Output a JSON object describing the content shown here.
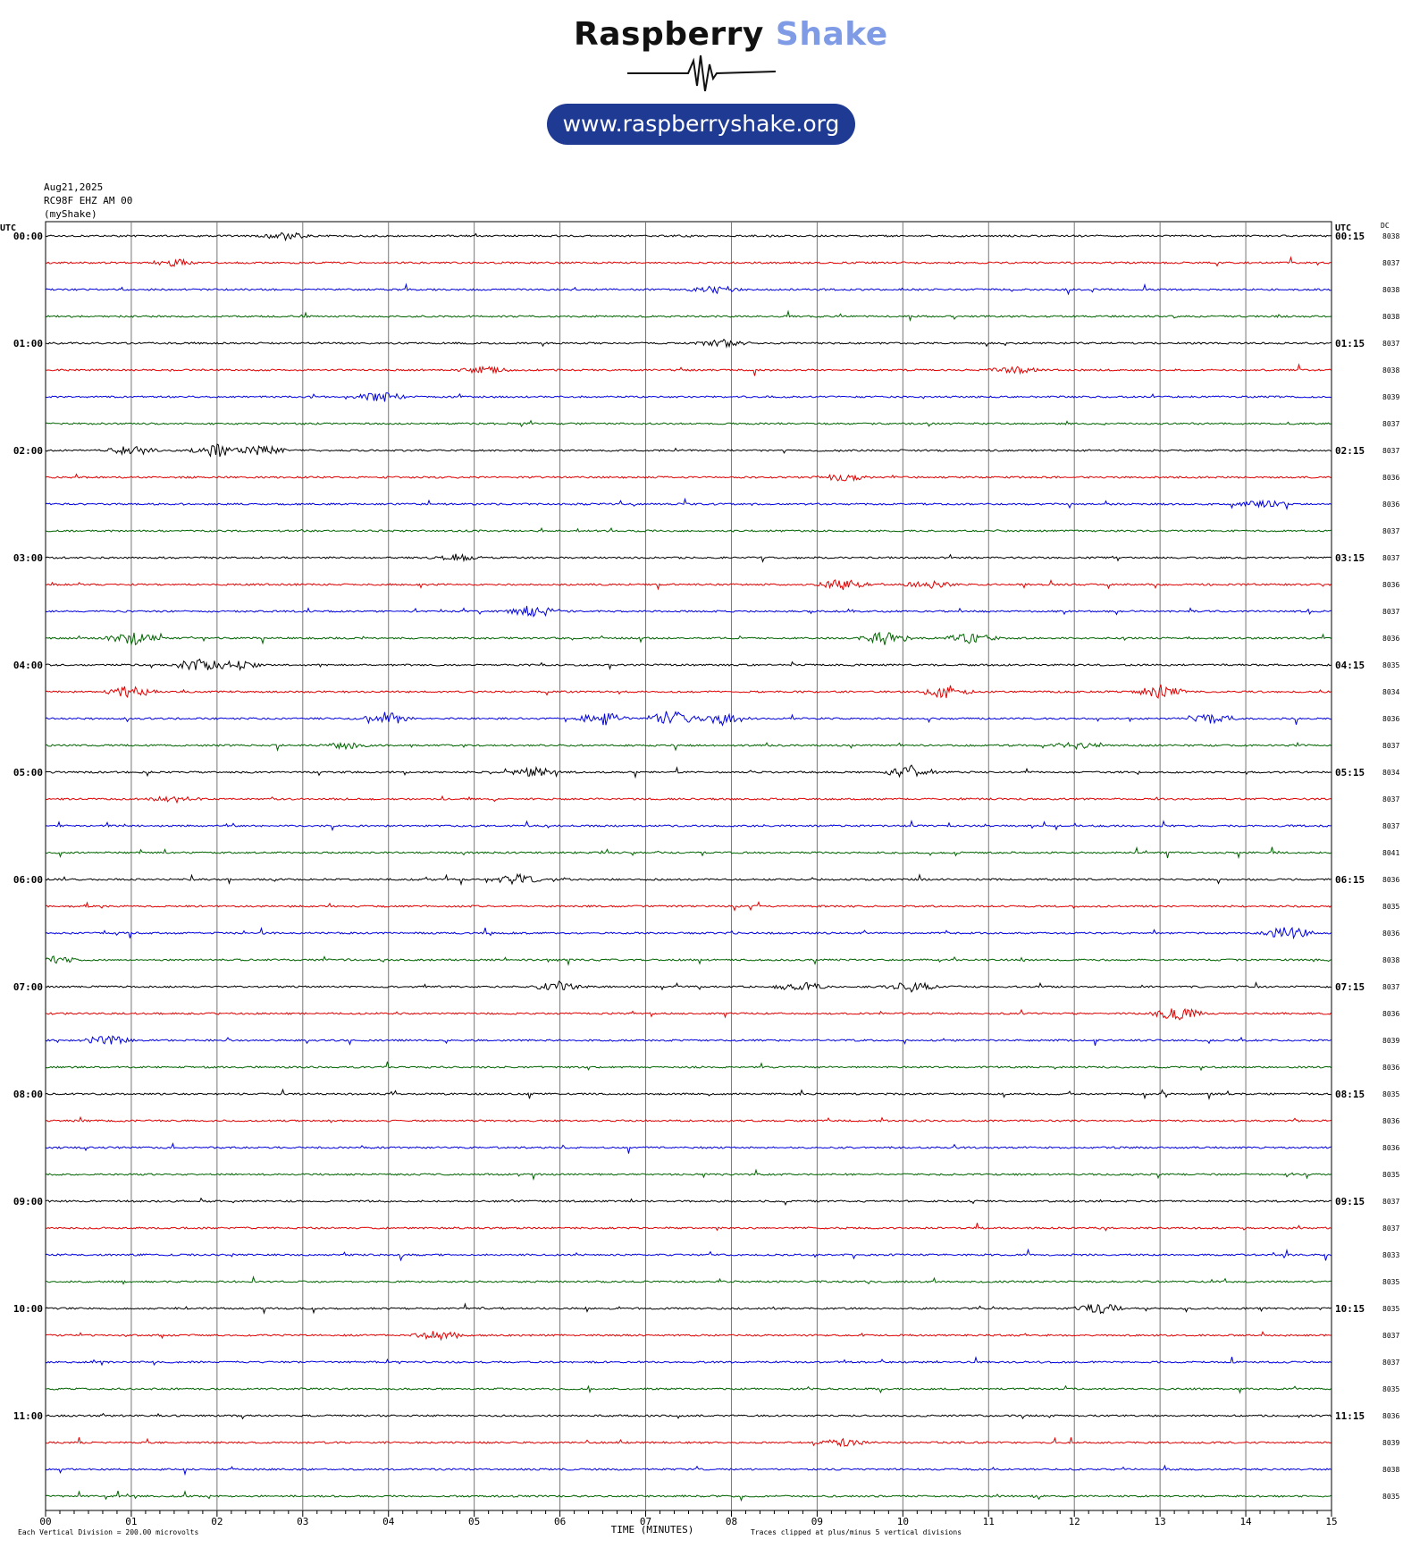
{
  "logo": {
    "word1": "Raspberry",
    "word2": "Shake",
    "url": "www.raspberryshake.org",
    "colors": {
      "word1": "#111111",
      "word2": "#7f9be6",
      "pill": "#1f3a93"
    }
  },
  "header": {
    "date": "Aug21,2025",
    "station": "RC98F EHZ AM 00",
    "network": "(myShake)"
  },
  "axes": {
    "left_label": "UTC",
    "right_label": "UTC",
    "dc_label": "DC",
    "xlabel": "TIME (MINUTES)",
    "footer_left": "Each Vertical Division =  200.00 microvolts",
    "footer_right": "Traces clipped at plus/minus 5 vertical divisions",
    "x_ticks": [
      "00",
      "01",
      "02",
      "03",
      "04",
      "05",
      "06",
      "07",
      "08",
      "09",
      "10",
      "11",
      "12",
      "13",
      "14",
      "15"
    ],
    "left_times": [
      "00:00",
      "01:00",
      "02:00",
      "03:00",
      "04:00",
      "05:00",
      "06:00",
      "07:00",
      "08:00",
      "09:00",
      "10:00",
      "11:00"
    ],
    "right_times": [
      "00:15",
      "01:15",
      "02:15",
      "03:15",
      "04:15",
      "05:15",
      "06:15",
      "07:15",
      "08:15",
      "09:15",
      "10:15",
      "11:15"
    ]
  },
  "chart_data": {
    "type": "line",
    "title": "",
    "xlabel": "TIME (MINUTES)",
    "xlim": [
      0,
      15
    ],
    "rows_per_hour": 4,
    "minutes_per_row": 15,
    "trace_colors": [
      "#000000",
      "#e00000",
      "#0000e0",
      "#006400"
    ],
    "dc_values": [
      "8038",
      "8037",
      "8038",
      "8038",
      "8037",
      "8038",
      "8039",
      "8037",
      "8037",
      "8036",
      "8036",
      "8037",
      "8037",
      "8036",
      "8037",
      "8036",
      "8035",
      "8034",
      "8036",
      "8037",
      "8034",
      "8037",
      "8037",
      "8041",
      "8036",
      "8035",
      "8036",
      "8038",
      "8037",
      "8036",
      "8039",
      "8036",
      "8035",
      "8036",
      "8036",
      "8035",
      "8037",
      "8037",
      "8033",
      "8035",
      "8035",
      "8037",
      "8037",
      "8035",
      "8036",
      "8039",
      "8038",
      "8035"
    ],
    "events": [
      {
        "row": 0,
        "minute": 2.8,
        "amp": 2
      },
      {
        "row": 1,
        "minute": 1.5,
        "amp": 2
      },
      {
        "row": 2,
        "minute": 7.8,
        "amp": 2
      },
      {
        "row": 4,
        "minute": 7.9,
        "amp": 2
      },
      {
        "row": 5,
        "minute": 5.1,
        "amp": 2
      },
      {
        "row": 5,
        "minute": 11.3,
        "amp": 2
      },
      {
        "row": 6,
        "minute": 3.9,
        "amp": 3
      },
      {
        "row": 8,
        "minute": 1.0,
        "amp": 3
      },
      {
        "row": 8,
        "minute": 2.0,
        "amp": 4
      },
      {
        "row": 8,
        "minute": 2.5,
        "amp": 3
      },
      {
        "row": 9,
        "minute": 9.3,
        "amp": 2
      },
      {
        "row": 10,
        "minute": 14.2,
        "amp": 2
      },
      {
        "row": 12,
        "minute": 4.8,
        "amp": 2
      },
      {
        "row": 13,
        "minute": 9.3,
        "amp": 3
      },
      {
        "row": 13,
        "minute": 10.3,
        "amp": 2
      },
      {
        "row": 14,
        "minute": 5.7,
        "amp": 4
      },
      {
        "row": 15,
        "minute": 1.0,
        "amp": 4
      },
      {
        "row": 15,
        "minute": 9.8,
        "amp": 4
      },
      {
        "row": 15,
        "minute": 10.8,
        "amp": 3
      },
      {
        "row": 16,
        "minute": 1.8,
        "amp": 4
      },
      {
        "row": 16,
        "minute": 2.2,
        "amp": 3
      },
      {
        "row": 17,
        "minute": 1.0,
        "amp": 4
      },
      {
        "row": 17,
        "minute": 10.5,
        "amp": 4
      },
      {
        "row": 17,
        "minute": 13.0,
        "amp": 4
      },
      {
        "row": 18,
        "minute": 4.0,
        "amp": 4
      },
      {
        "row": 18,
        "minute": 6.5,
        "amp": 4
      },
      {
        "row": 18,
        "minute": 7.3,
        "amp": 5
      },
      {
        "row": 18,
        "minute": 7.9,
        "amp": 4
      },
      {
        "row": 18,
        "minute": 13.6,
        "amp": 3
      },
      {
        "row": 19,
        "minute": 3.5,
        "amp": 2
      },
      {
        "row": 19,
        "minute": 12.0,
        "amp": 2
      },
      {
        "row": 20,
        "minute": 5.7,
        "amp": 3
      },
      {
        "row": 20,
        "minute": 10.1,
        "amp": 4
      },
      {
        "row": 21,
        "minute": 1.5,
        "amp": 2
      },
      {
        "row": 24,
        "minute": 5.5,
        "amp": 3
      },
      {
        "row": 26,
        "minute": 14.5,
        "amp": 4
      },
      {
        "row": 27,
        "minute": 0.1,
        "amp": 2
      },
      {
        "row": 28,
        "minute": 6.0,
        "amp": 3
      },
      {
        "row": 28,
        "minute": 8.8,
        "amp": 3
      },
      {
        "row": 28,
        "minute": 10.1,
        "amp": 3
      },
      {
        "row": 29,
        "minute": 13.2,
        "amp": 4
      },
      {
        "row": 30,
        "minute": 0.7,
        "amp": 3
      },
      {
        "row": 40,
        "minute": 12.3,
        "amp": 3
      },
      {
        "row": 41,
        "minute": 4.6,
        "amp": 3
      },
      {
        "row": 45,
        "minute": 9.3,
        "amp": 2
      }
    ]
  }
}
